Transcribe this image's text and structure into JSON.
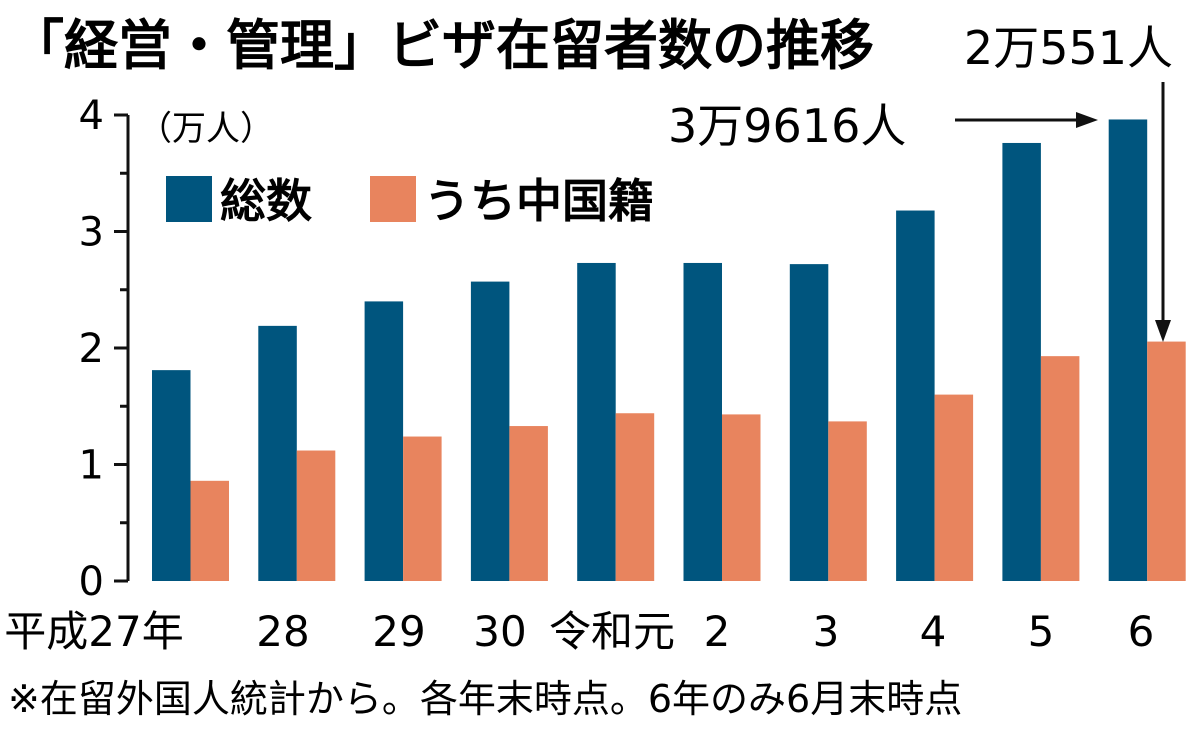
{
  "chart_data": {
    "type": "bar",
    "title": "「経営・管理」ビザ在留者数の推移",
    "ylabel": "（万人）",
    "ylim": [
      0,
      4
    ],
    "yticks": [
      "0",
      "1",
      "2",
      "3",
      "4"
    ],
    "categories": [
      "平成27年",
      "28",
      "29",
      "30",
      "令和元",
      "2",
      "3",
      "4",
      "5",
      "6"
    ],
    "series": [
      {
        "name": "総数",
        "color": "#00557e",
        "values": [
          1.81,
          2.19,
          2.4,
          2.57,
          2.73,
          2.73,
          2.72,
          3.18,
          3.76,
          3.9616
        ]
      },
      {
        "name": "うち中国籍",
        "color": "#e8845e",
        "values": [
          0.86,
          1.12,
          1.24,
          1.33,
          1.44,
          1.43,
          1.37,
          1.6,
          1.93,
          2.0551
        ]
      }
    ],
    "legend_position": "top-left",
    "grid": false,
    "annotations": [
      {
        "text": "3万9616人",
        "target": "総数 6"
      },
      {
        "text": "2万551人",
        "target": "うち中国籍 6"
      }
    ],
    "footnote": "※在留外国人統計から。各年末時点。6年のみ6月末時点"
  }
}
